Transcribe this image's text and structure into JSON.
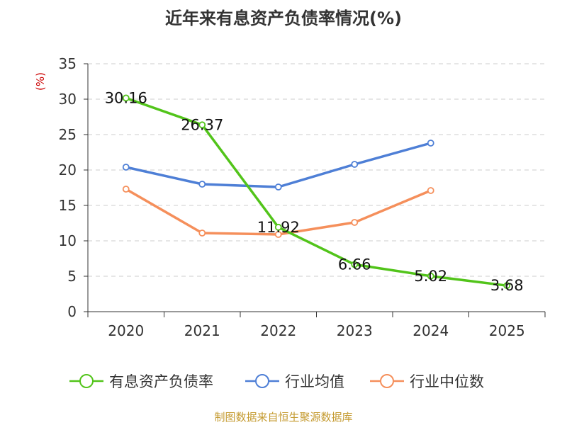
{
  "chart_data": {
    "type": "line",
    "title": "近年来有息资产负债率情况(%)",
    "ylabel": "(%)",
    "xlabel": "",
    "categories": [
      "2020",
      "2021",
      "2022",
      "2023",
      "2024",
      "2025"
    ],
    "ylim": [
      0,
      35
    ],
    "yticks": [
      0,
      5,
      10,
      15,
      20,
      25,
      30,
      35
    ],
    "grid": true,
    "legend_position": "bottom",
    "series": [
      {
        "name": "有息资产负债率",
        "color": "#52c41a",
        "show_labels": true,
        "values": [
          30.16,
          26.37,
          11.92,
          6.66,
          5.02,
          3.68
        ]
      },
      {
        "name": "行业均值",
        "color": "#4e7fd6",
        "show_labels": false,
        "values": [
          20.4,
          18.0,
          17.6,
          20.8,
          23.8,
          null
        ]
      },
      {
        "name": "行业中位数",
        "color": "#f58f5b",
        "show_labels": false,
        "values": [
          17.3,
          11.1,
          10.9,
          12.6,
          17.1,
          null
        ]
      }
    ]
  },
  "source": "制图数据来自恒生聚源数据库"
}
